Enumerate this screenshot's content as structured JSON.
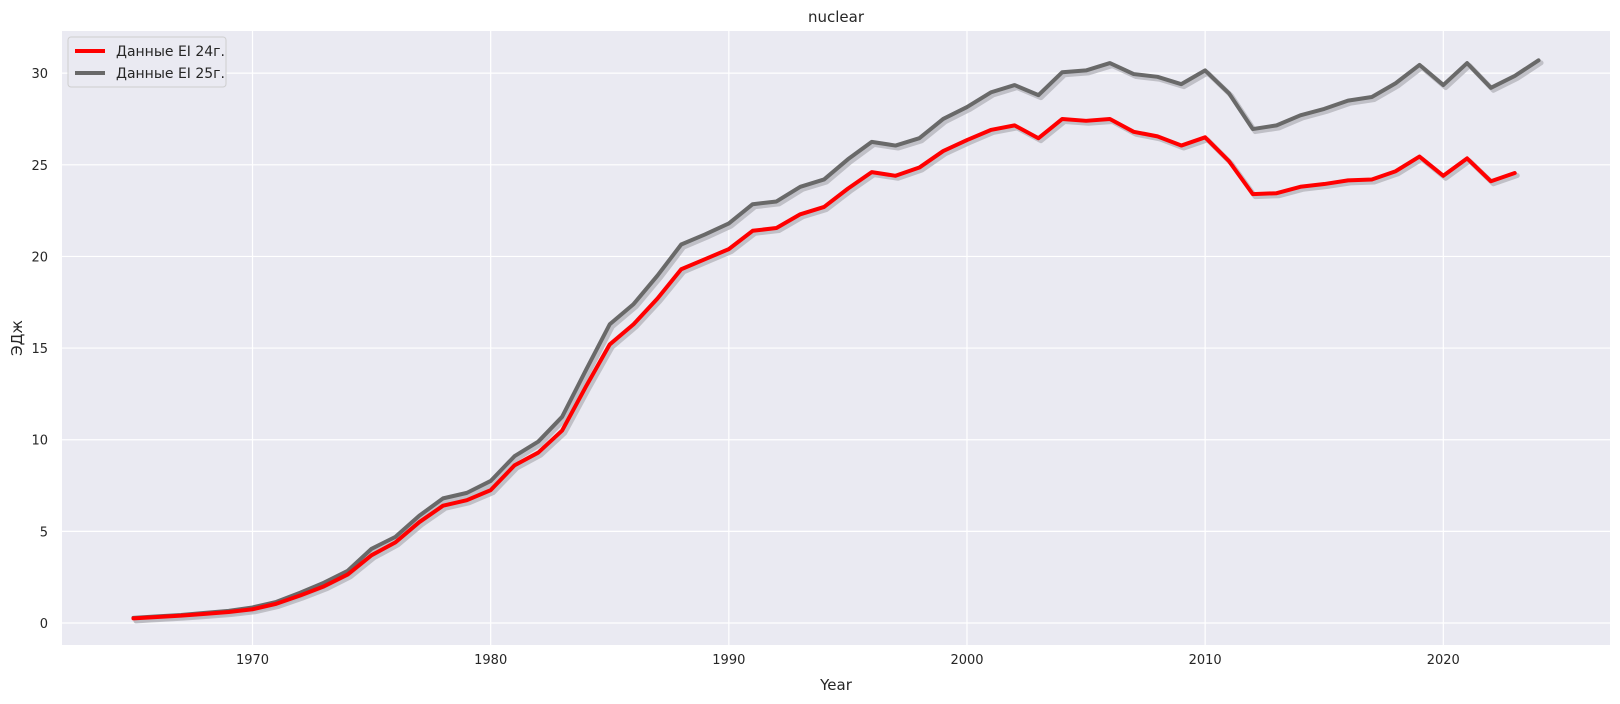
{
  "chart_data": {
    "type": "line",
    "title": "nuclear",
    "xlabel": "Year",
    "ylabel": "ЭДж",
    "xlim": [
      1962,
      2027
    ],
    "ylim": [
      -1.2,
      32.3
    ],
    "xticks": [
      1970,
      1980,
      1990,
      2000,
      2010,
      2020
    ],
    "yticks": [
      0,
      5,
      10,
      15,
      20,
      25,
      30
    ],
    "grid": true,
    "legend_position": "top-left",
    "colors": {
      "background": "#eaeaf2",
      "grid": "#ffffff",
      "shadow": "#b9b9bf"
    },
    "series": [
      {
        "name": "Данные EI 24г.",
        "color": "#ff0000",
        "x": [
          1965,
          1966,
          1967,
          1968,
          1969,
          1970,
          1971,
          1972,
          1973,
          1974,
          1975,
          1976,
          1977,
          1978,
          1979,
          1980,
          1981,
          1982,
          1983,
          1984,
          1985,
          1986,
          1987,
          1988,
          1989,
          1990,
          1991,
          1992,
          1993,
          1994,
          1995,
          1996,
          1997,
          1998,
          1999,
          2000,
          2001,
          2002,
          2003,
          2004,
          2005,
          2006,
          2007,
          2008,
          2009,
          2010,
          2011,
          2012,
          2013,
          2014,
          2015,
          2016,
          2017,
          2018,
          2019,
          2020,
          2021,
          2022,
          2023
        ],
        "values": [
          0.25,
          0.33,
          0.4,
          0.5,
          0.6,
          0.75,
          1.05,
          1.5,
          2.0,
          2.65,
          3.7,
          4.4,
          5.5,
          6.4,
          6.7,
          7.25,
          8.6,
          9.3,
          10.5,
          12.9,
          15.2,
          16.3,
          17.7,
          19.3,
          19.85,
          20.4,
          21.4,
          21.55,
          22.3,
          22.7,
          23.7,
          24.6,
          24.4,
          24.85,
          25.75,
          26.35,
          26.9,
          27.15,
          26.45,
          27.5,
          27.4,
          27.5,
          26.8,
          26.55,
          26.05,
          26.5,
          25.2,
          23.4,
          23.45,
          23.8,
          23.95,
          24.15,
          24.2,
          24.65,
          25.45,
          24.4,
          25.35,
          24.1,
          24.55
        ]
      },
      {
        "name": "Данные EI 25г.",
        "color": "#696969",
        "x": [
          1965,
          1966,
          1967,
          1968,
          1969,
          1970,
          1971,
          1972,
          1973,
          1974,
          1975,
          1976,
          1977,
          1978,
          1979,
          1980,
          1981,
          1982,
          1983,
          1984,
          1985,
          1986,
          1987,
          1988,
          1989,
          1990,
          1991,
          1992,
          1993,
          1994,
          1995,
          1996,
          1997,
          1998,
          1999,
          2000,
          2001,
          2002,
          2003,
          2004,
          2005,
          2006,
          2007,
          2008,
          2009,
          2010,
          2011,
          2012,
          2013,
          2014,
          2015,
          2016,
          2017,
          2018,
          2019,
          2020,
          2021,
          2022,
          2023,
          2024
        ],
        "values": [
          0.28,
          0.36,
          0.44,
          0.55,
          0.66,
          0.85,
          1.15,
          1.65,
          2.2,
          2.85,
          4.05,
          4.7,
          5.85,
          6.8,
          7.1,
          7.75,
          9.1,
          9.9,
          11.25,
          13.8,
          16.3,
          17.4,
          18.95,
          20.65,
          21.2,
          21.8,
          22.85,
          23.0,
          23.8,
          24.2,
          25.3,
          26.25,
          26.05,
          26.45,
          27.5,
          28.15,
          28.95,
          29.35,
          28.8,
          30.05,
          30.15,
          30.55,
          29.95,
          29.8,
          29.4,
          30.15,
          28.9,
          26.95,
          27.15,
          27.7,
          28.05,
          28.5,
          28.7,
          29.45,
          30.45,
          29.35,
          30.55,
          29.2,
          29.85,
          30.7
        ]
      }
    ]
  }
}
